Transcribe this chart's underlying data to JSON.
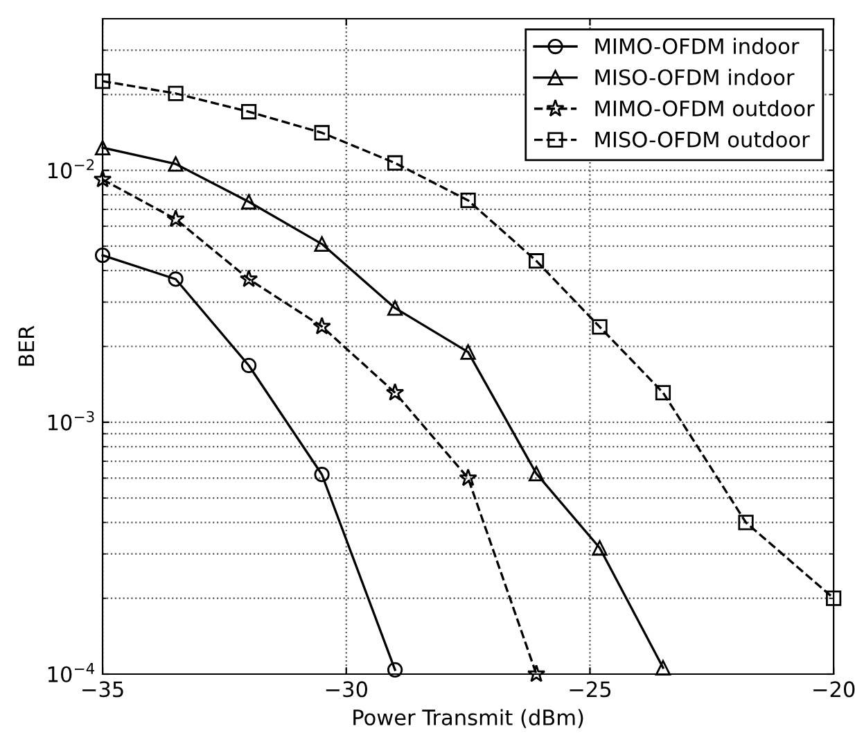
{
  "chart_data": {
    "type": "line",
    "xlabel": "Power Transmit (dBm)",
    "ylabel": "BER",
    "log": "y",
    "xlim": [
      -35,
      -20
    ],
    "xticks": [
      -35,
      -30,
      -25,
      -20
    ],
    "ylim": [
      0.0001,
      0.04
    ],
    "yticks": [
      {
        "value": 0.0001,
        "label": "10$^{−4}$"
      },
      {
        "value": 0.001,
        "label": "10$^{−3}$"
      },
      {
        "value": 0.01,
        "label": "10$^{−2}$"
      }
    ],
    "grid": true,
    "legend": "top right",
    "series": [
      {
        "name": "MIMO-OFDM indoor",
        "color": "#000000",
        "marker": "circle",
        "line_style": "solid",
        "x": [
          -35,
          -33.5,
          -32,
          -30.5,
          -29
        ],
        "values": [
          0.0046,
          0.0037,
          0.00168,
          0.00062,
          0.000104
        ]
      },
      {
        "name": "MISO-OFDM indoor",
        "color": "#000000",
        "marker": "triangle",
        "line_style": "solid",
        "x": [
          -35,
          -33.5,
          -32,
          -30.5,
          -29,
          -27.5,
          -26.1,
          -24.8,
          -23.5
        ],
        "values": [
          0.0123,
          0.0106,
          0.0075,
          0.0051,
          0.00284,
          0.0019,
          0.000625,
          0.000317,
          0.000106
        ]
      },
      {
        "name": "MIMO-OFDM outdoor",
        "color": "#000000",
        "marker": "star",
        "line_style": "dashed",
        "x": [
          -35,
          -33.5,
          -32,
          -30.5,
          -29,
          -27.5,
          -26.1
        ],
        "values": [
          0.0092,
          0.0064,
          0.0037,
          0.0024,
          0.00131,
          0.0006,
          0.0001
        ]
      },
      {
        "name": "MISO-OFDM outdoor",
        "color": "#000000",
        "marker": "square",
        "line_style": "dashed",
        "x": [
          -35,
          -33.5,
          -32,
          -30.5,
          -29,
          -27.5,
          -26.1,
          -24.8,
          -23.5,
          -21.8,
          -20
        ],
        "values": [
          0.0226,
          0.0202,
          0.0171,
          0.0141,
          0.0107,
          0.0076,
          0.00437,
          0.00239,
          0.00131,
          0.0004,
          0.0002
        ]
      }
    ]
  }
}
